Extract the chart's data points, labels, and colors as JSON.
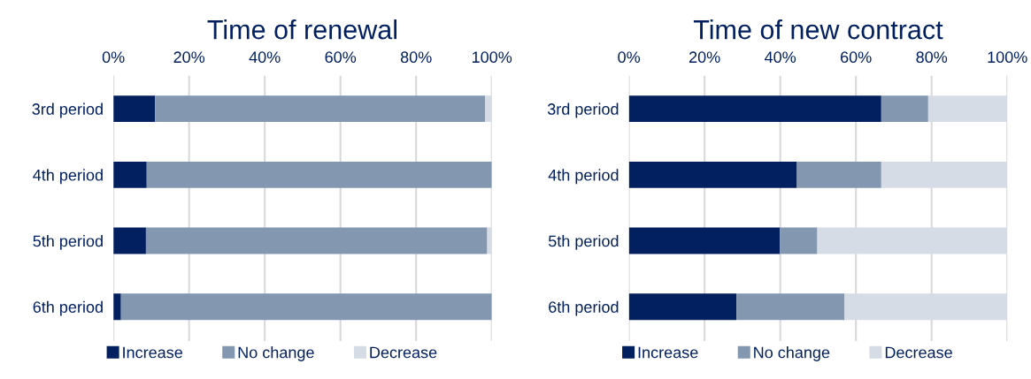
{
  "chart_data": [
    {
      "type": "bar",
      "orientation": "horizontal",
      "stacked": true,
      "title": "Time of renewal",
      "categories": [
        "3rd period",
        "4th period",
        "5th period",
        "6th period"
      ],
      "series": [
        {
          "name": "Increase",
          "color": "#022060",
          "values": [
            11,
            8.8,
            8.6,
            2
          ]
        },
        {
          "name": "No change",
          "color": "#8497b0",
          "values": [
            87.2,
            91.2,
            90.2,
            98
          ]
        },
        {
          "name": "Decrease",
          "color": "#d6dce5",
          "values": [
            1.8,
            0,
            1.2,
            0
          ]
        }
      ],
      "xlim": [
        0,
        100
      ],
      "xticks": [
        {
          "value": 0,
          "label": "0%"
        },
        {
          "value": 20,
          "label": "20%"
        },
        {
          "value": 40,
          "label": "40%"
        },
        {
          "value": 60,
          "label": "60%"
        },
        {
          "value": 80,
          "label": "80%"
        },
        {
          "value": 100,
          "label": "100%"
        }
      ],
      "grid": "x",
      "legend": "bottom"
    },
    {
      "type": "bar",
      "orientation": "horizontal",
      "stacked": true,
      "title": "Time of new contract",
      "categories": [
        "3rd period",
        "4th period",
        "5th period",
        "6th period"
      ],
      "series": [
        {
          "name": "Increase",
          "color": "#022060",
          "values": [
            66.7,
            44.4,
            39.9,
            28.4
          ]
        },
        {
          "name": "No change",
          "color": "#8497b0",
          "values": [
            12.4,
            22.3,
            9.9,
            28.6
          ]
        },
        {
          "name": "Decrease",
          "color": "#d6dce5",
          "values": [
            20.9,
            33.3,
            50.2,
            43
          ]
        }
      ],
      "xlim": [
        0,
        100
      ],
      "xticks": [
        {
          "value": 0,
          "label": "0%"
        },
        {
          "value": 20,
          "label": "20%"
        },
        {
          "value": 40,
          "label": "40%"
        },
        {
          "value": 60,
          "label": "60%"
        },
        {
          "value": 80,
          "label": "80%"
        },
        {
          "value": 100,
          "label": "100%"
        }
      ],
      "grid": "x",
      "legend": "bottom"
    }
  ]
}
